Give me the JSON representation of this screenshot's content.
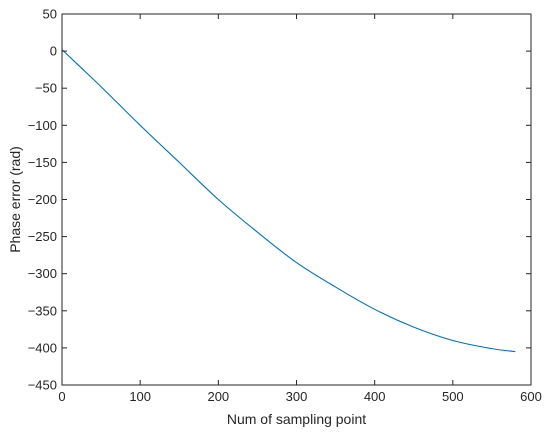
{
  "chart_data": {
    "type": "line",
    "title": "",
    "xlabel": "Num of sampling point",
    "ylabel": "Phase error (rad)",
    "xlim": [
      0,
      600
    ],
    "ylim": [
      -450,
      50
    ],
    "xticks": [
      0,
      100,
      200,
      300,
      400,
      500,
      600
    ],
    "yticks": [
      50,
      0,
      -50,
      -100,
      -150,
      -200,
      -250,
      -300,
      -350,
      -400,
      -450
    ],
    "ytick_labels": [
      "50",
      "0",
      "−50",
      "−100",
      "−150",
      "−200",
      "−250",
      "−300",
      "−350",
      "−400",
      "−450"
    ],
    "grid": false,
    "legend": null,
    "series": [
      {
        "color": "#0072BD",
        "x": [
          0,
          20,
          50,
          100,
          150,
          200,
          250,
          300,
          350,
          400,
          450,
          500,
          550,
          580
        ],
        "y": [
          2,
          -18,
          -48,
          -100,
          -150,
          -200,
          -244,
          -285,
          -318,
          -348,
          -372,
          -390,
          -401,
          -405
        ]
      }
    ]
  }
}
